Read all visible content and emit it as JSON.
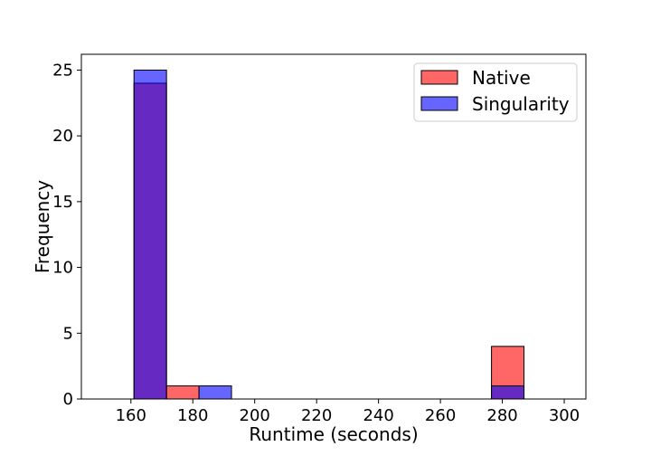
{
  "chart_data": {
    "type": "bar",
    "subtype": "histogram",
    "title": "",
    "xlabel": "Runtime (seconds)",
    "ylabel": "Frequency",
    "xlim": [
      144,
      307
    ],
    "ylim": [
      0,
      26.2
    ],
    "xticks": [
      160,
      180,
      200,
      220,
      240,
      260,
      280,
      300
    ],
    "yticks": [
      0,
      5,
      10,
      15,
      20,
      25
    ],
    "grid": false,
    "legend_position": "top-right",
    "series": [
      {
        "name": "Native",
        "color": "#ff0000",
        "opacity": 0.6,
        "bins": [
          {
            "x0": 161,
            "x1": 171.5,
            "value": 24
          },
          {
            "x0": 171.5,
            "x1": 182,
            "value": 1
          },
          {
            "x0": 276.5,
            "x1": 287,
            "value": 4
          }
        ]
      },
      {
        "name": "Singularity",
        "color": "#0000ff",
        "opacity": 0.6,
        "bins": [
          {
            "x0": 161,
            "x1": 171.5,
            "value": 25
          },
          {
            "x0": 182,
            "x1": 192.5,
            "value": 1
          },
          {
            "x0": 276.5,
            "x1": 287,
            "value": 1
          }
        ]
      }
    ]
  }
}
